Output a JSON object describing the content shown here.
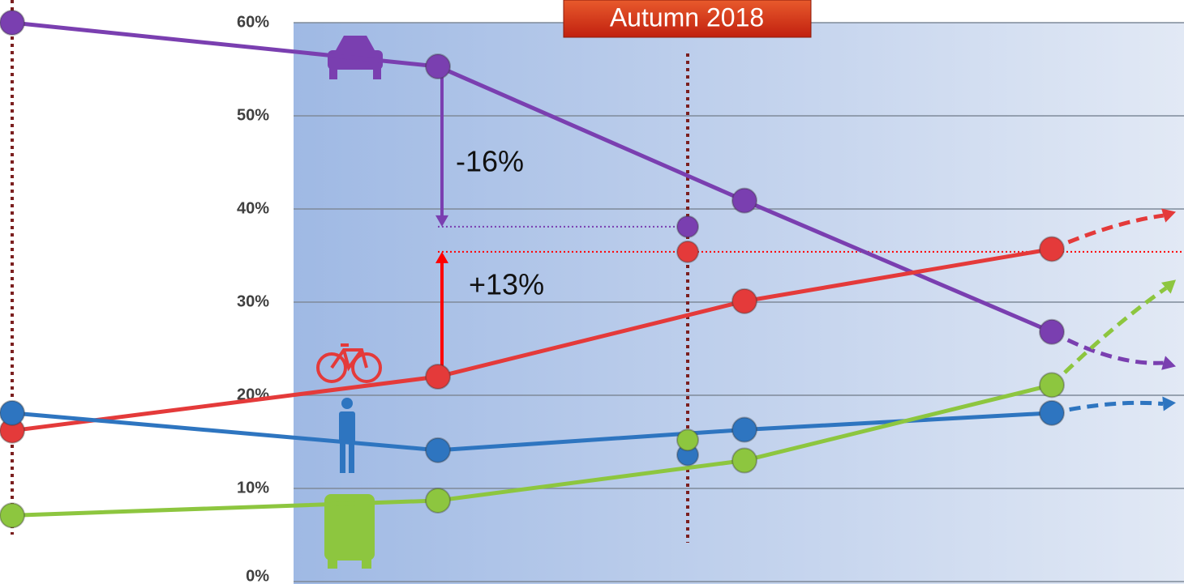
{
  "chart_data": {
    "type": "line",
    "annotations": [
      "Autumn 2018",
      "-16%",
      "+13%"
    ],
    "x": [
      0.15,
      5.4,
      9.18,
      12.97
    ],
    "xlim": [
      0,
      14.6
    ],
    "marker_x": 8.48,
    "projection_x": 14.5,
    "ylim": [
      0,
      60
    ],
    "yticks": [
      {
        "value": 0,
        "label": "0%"
      },
      {
        "value": 10,
        "label": "10%"
      },
      {
        "value": 20,
        "label": "20%"
      },
      {
        "value": 30,
        "label": "30%"
      },
      {
        "value": 40,
        "label": "40%"
      },
      {
        "value": 50,
        "label": "50%"
      },
      {
        "value": 60,
        "label": "60%"
      }
    ],
    "grid": true,
    "series": [
      {
        "color": "#7a3fb0",
        "values": [
          60,
          55.3,
          40.9,
          26.8
        ],
        "marker_value": 38.1,
        "projection_value": 23.1
      },
      {
        "color": "#e43a3a",
        "values": [
          16.2,
          22,
          30.1,
          35.7
        ],
        "marker_value": 35.4,
        "projection_value": 39.7
      },
      {
        "color": "#2e75c0",
        "values": [
          18.1,
          14.1,
          16.3,
          18.1
        ],
        "marker_value": 13.6,
        "projection_value": 19.2
      },
      {
        "color": "#8dc63f",
        "values": [
          7.1,
          8.7,
          13,
          21.1
        ],
        "marker_value": 15.2,
        "projection_value": 32.4
      }
    ]
  }
}
